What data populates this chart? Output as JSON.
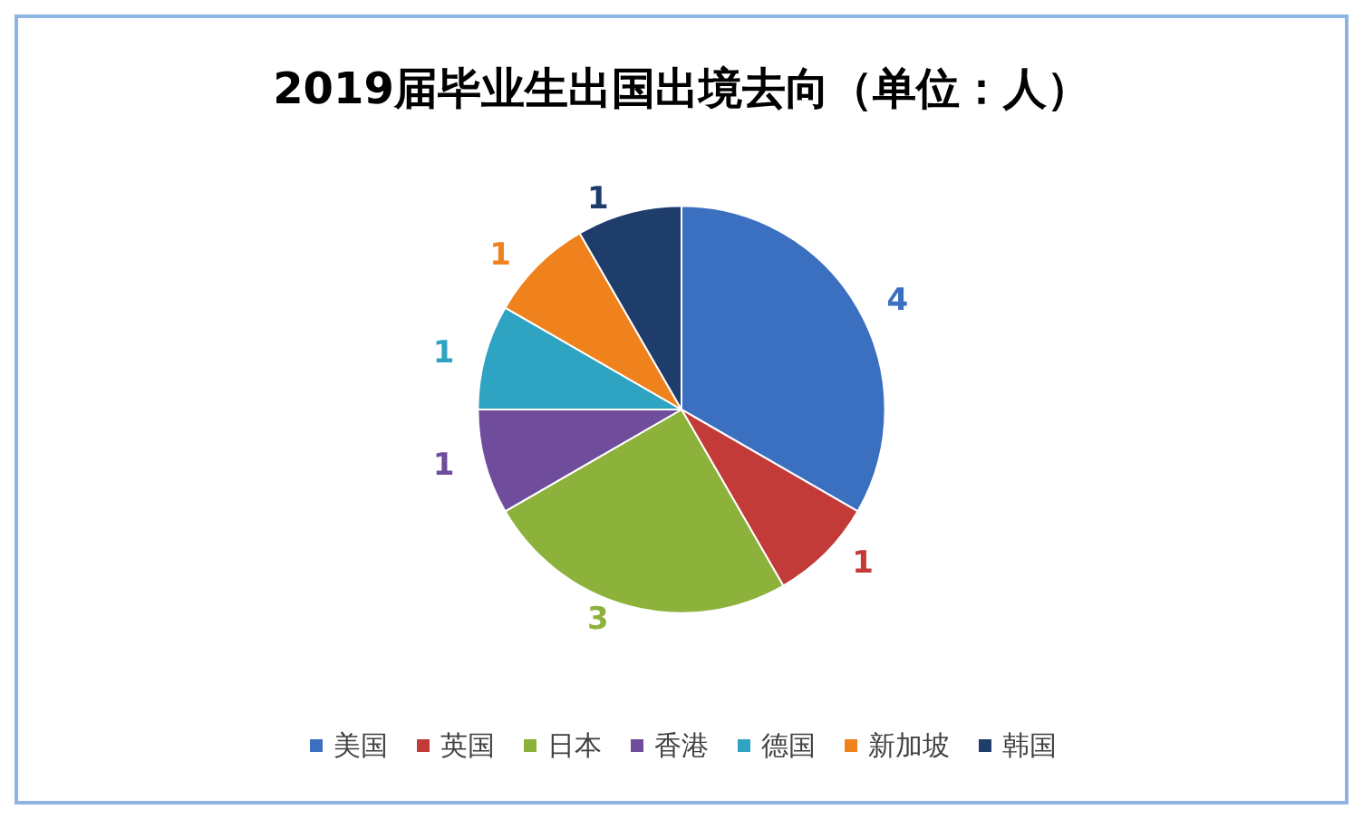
{
  "chart_data": {
    "type": "pie",
    "title": "2019届毕业生出国出境去向（单位：人）",
    "categories": [
      "美国",
      "英国",
      "日本",
      "香港",
      "德国",
      "新加坡",
      "韩国"
    ],
    "values": [
      4,
      1,
      3,
      1,
      1,
      1,
      1
    ],
    "colors": [
      "#3b6fc0",
      "#c23b39",
      "#8cb23b",
      "#6f4d9c",
      "#2fa3c2",
      "#f0821e",
      "#1e3d6b"
    ],
    "data_labels": true,
    "legend": "bottom"
  }
}
